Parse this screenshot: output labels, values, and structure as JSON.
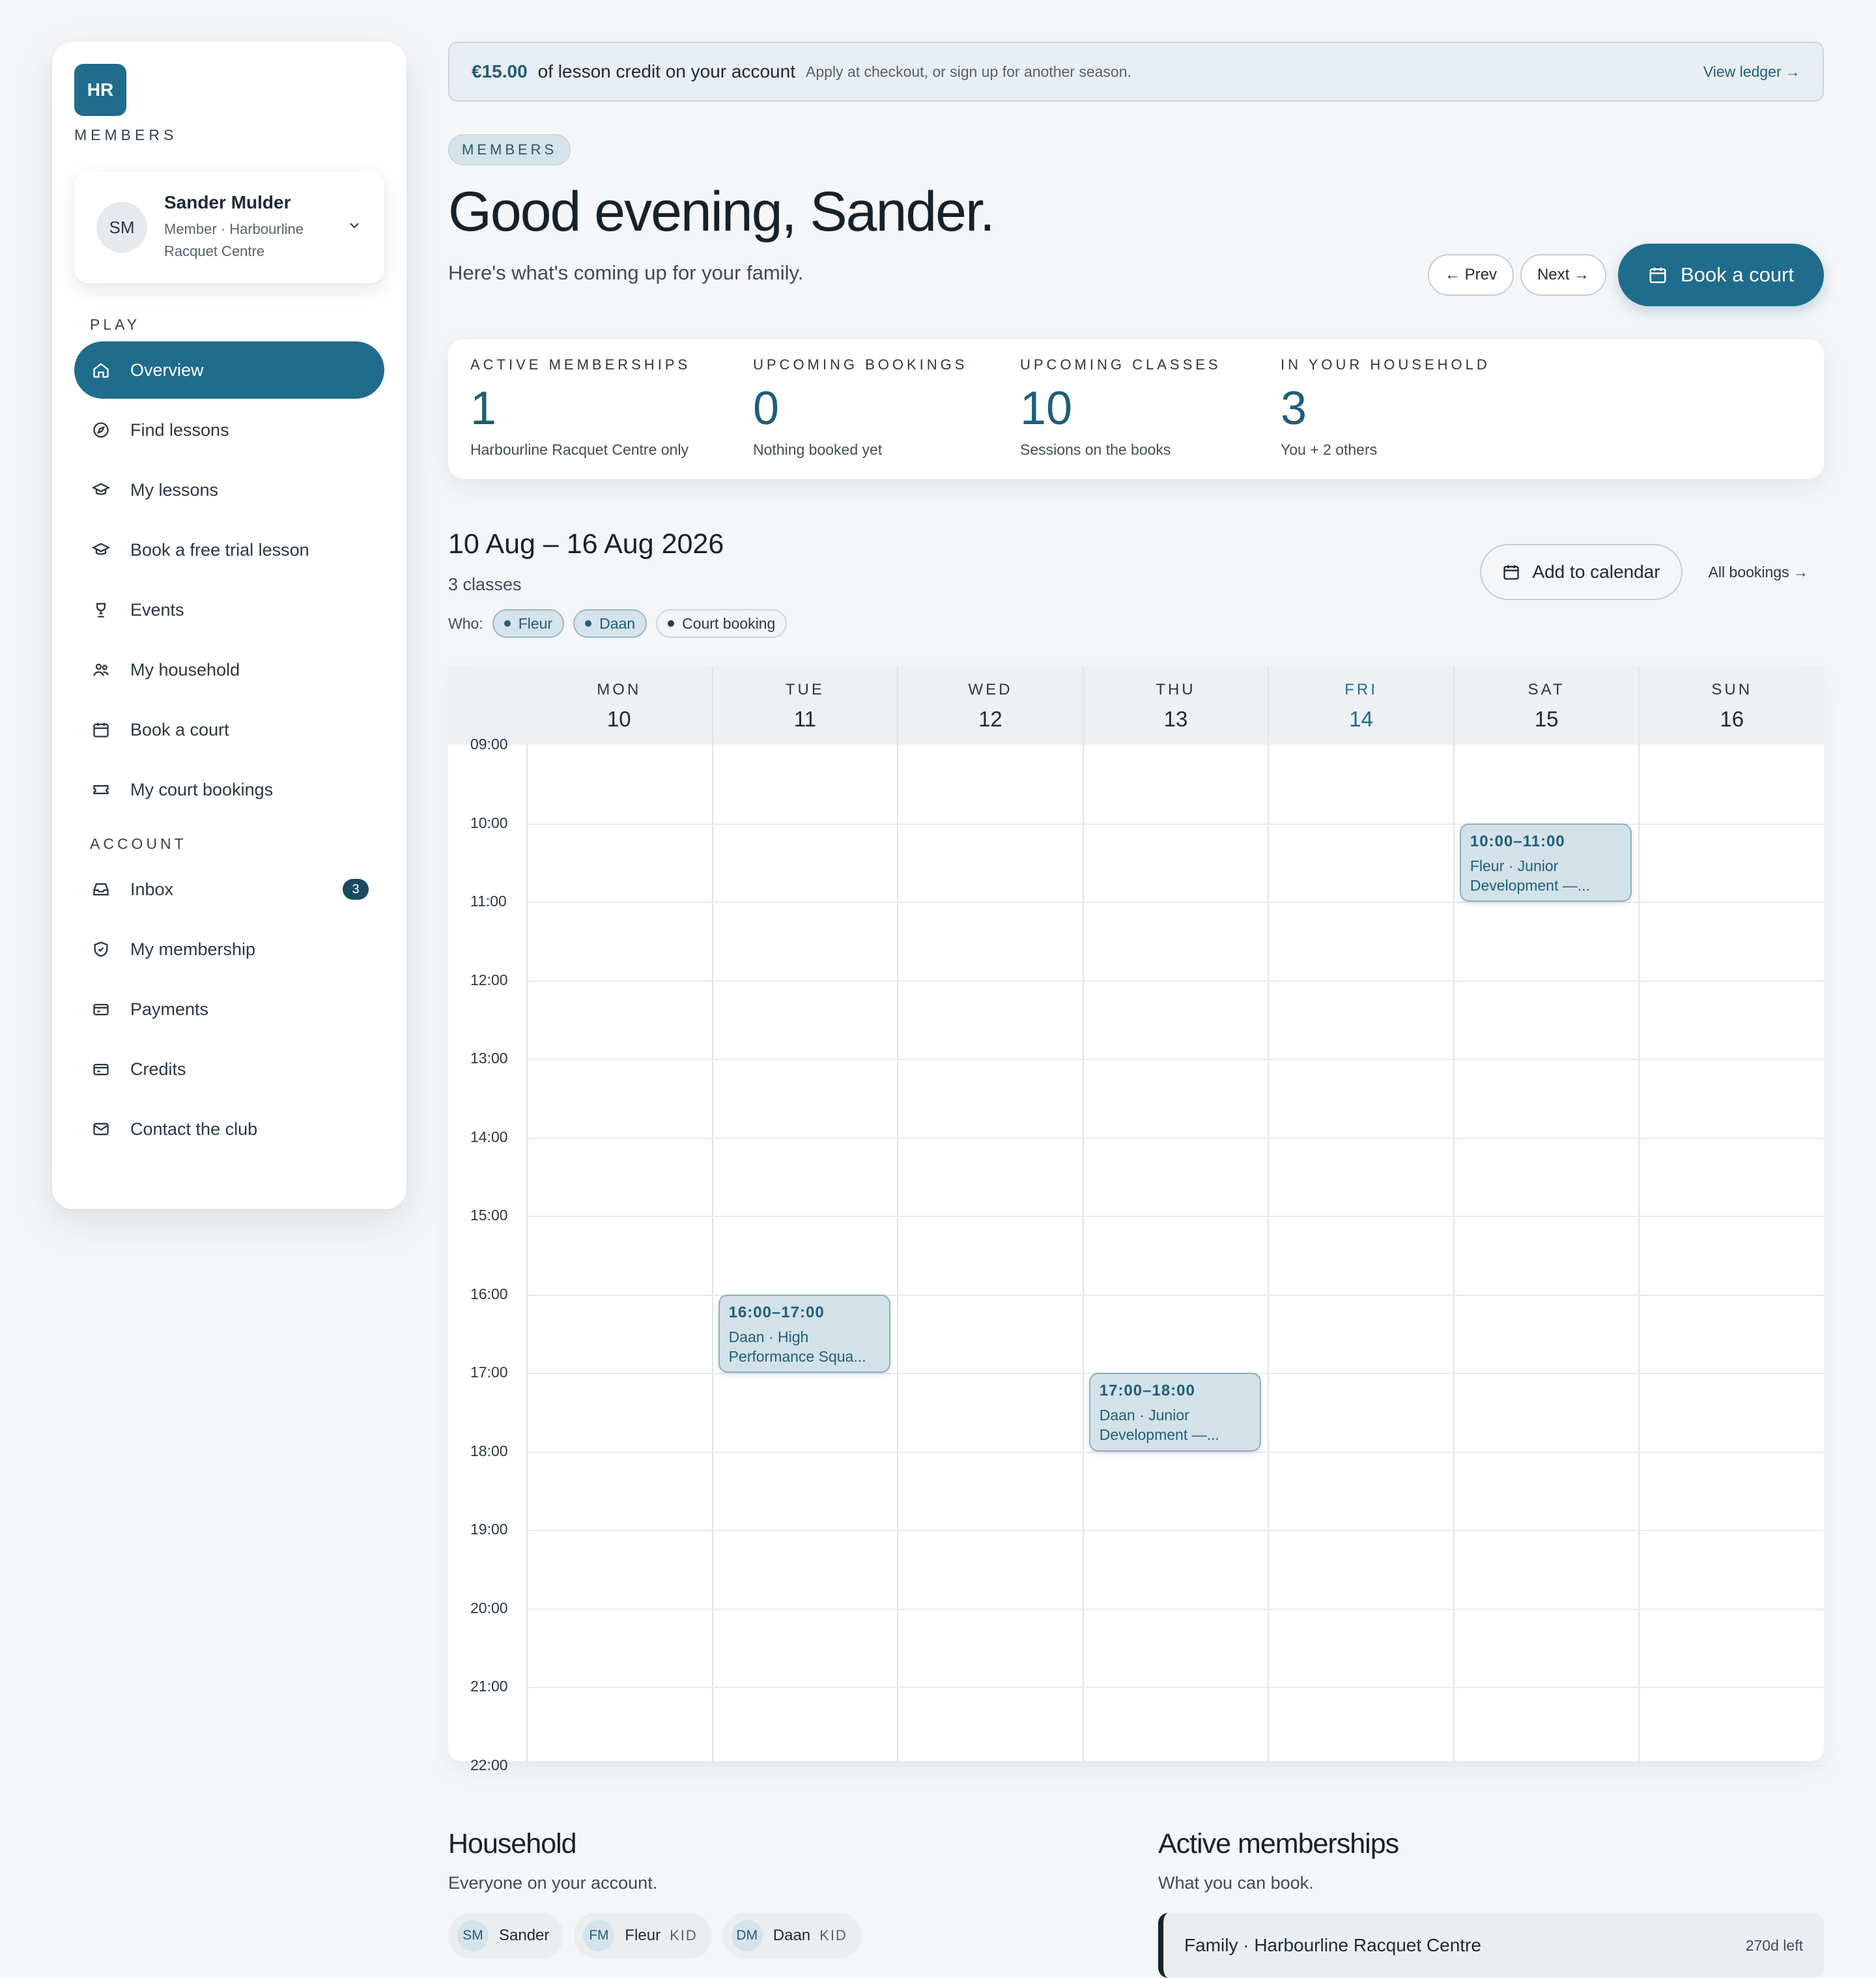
{
  "brand": {
    "logo_text": "HR",
    "caption": "MEMBERS"
  },
  "user": {
    "initials": "SM",
    "name": "Sander Mulder",
    "subtitle": "Member · Harbourline Racquet Centre"
  },
  "nav": {
    "play_label": "PLAY",
    "play_items": [
      {
        "label": "Overview",
        "icon": "home-icon",
        "active": true
      },
      {
        "label": "Find lessons",
        "icon": "compass-icon"
      },
      {
        "label": "My lessons",
        "icon": "graduation-cap-icon"
      },
      {
        "label": "Book a free trial lesson",
        "icon": "graduation-cap-icon"
      },
      {
        "label": "Events",
        "icon": "trophy-icon"
      },
      {
        "label": "My household",
        "icon": "users-icon"
      },
      {
        "label": "Book a court",
        "icon": "calendar-icon"
      },
      {
        "label": "My court bookings",
        "icon": "ticket-icon"
      }
    ],
    "account_label": "ACCOUNT",
    "account_items": [
      {
        "label": "Inbox",
        "icon": "inbox-icon",
        "badge": "3"
      },
      {
        "label": "My membership",
        "icon": "shield-icon"
      },
      {
        "label": "Payments",
        "icon": "card-icon"
      },
      {
        "label": "Credits",
        "icon": "card-icon"
      },
      {
        "label": "Contact the club",
        "icon": "mail-icon"
      }
    ]
  },
  "credit_banner": {
    "amount": "€15.00",
    "text": "of lesson credit on your account",
    "note": "Apply at checkout, or sign up for another season.",
    "link": "View ledger →"
  },
  "header": {
    "pill": "MEMBERS",
    "greeting": "Good evening, Sander.",
    "subtitle": "Here's what's coming up for your family.",
    "prev_label": "← Prev",
    "next_label": "Next →",
    "book_label": "Book a court"
  },
  "stats": [
    {
      "label": "ACTIVE MEMBERSHIPS",
      "value": "1",
      "sub": "Harbourline Racquet Centre only"
    },
    {
      "label": "UPCOMING BOOKINGS",
      "value": "0",
      "sub": "Nothing booked yet"
    },
    {
      "label": "UPCOMING CLASSES",
      "value": "10",
      "sub": "Sessions on the books"
    },
    {
      "label": "IN YOUR HOUSEHOLD",
      "value": "3",
      "sub": "You + 2 others"
    }
  ],
  "week": {
    "title": "10 Aug – 16 Aug 2026",
    "sub": "3 classes",
    "who_label": "Who:",
    "filters": [
      "Fleur",
      "Daan",
      "Court booking"
    ],
    "add_calendar_label": "Add to calendar",
    "all_bookings_label": "All bookings →"
  },
  "calendar": {
    "days": [
      {
        "dow": "MON",
        "num": "10"
      },
      {
        "dow": "TUE",
        "num": "11"
      },
      {
        "dow": "WED",
        "num": "12"
      },
      {
        "dow": "THU",
        "num": "13"
      },
      {
        "dow": "FRI",
        "num": "14",
        "today": true
      },
      {
        "dow": "SAT",
        "num": "15"
      },
      {
        "dow": "SUN",
        "num": "16"
      }
    ],
    "times": [
      "09:00",
      "10:00",
      "11:00",
      "12:00",
      "13:00",
      "14:00",
      "15:00",
      "16:00",
      "17:00",
      "18:00",
      "19:00",
      "20:00",
      "21:00",
      "22:00"
    ],
    "events": [
      {
        "day": 1,
        "start": 16,
        "end": 17,
        "time": "16:00–17:00",
        "title": "Daan · High Performance Squa..."
      },
      {
        "day": 3,
        "start": 17,
        "end": 18,
        "time": "17:00–18:00",
        "title": "Daan · Junior Development —..."
      },
      {
        "day": 5,
        "start": 10,
        "end": 11,
        "time": "10:00–11:00",
        "title": "Fleur · Junior Development —..."
      }
    ]
  },
  "household": {
    "title": "Household",
    "sub": "Everyone on your account.",
    "members": [
      {
        "initials": "SM",
        "name": "Sander",
        "tag": ""
      },
      {
        "initials": "FM",
        "name": "Fleur",
        "tag": "KID"
      },
      {
        "initials": "DM",
        "name": "Daan",
        "tag": "KID"
      }
    ]
  },
  "memberships": {
    "title": "Active memberships",
    "sub": "What you can book.",
    "items": [
      {
        "name": "Family · Harbourline Racquet Centre",
        "left": "270d left"
      }
    ]
  },
  "colors": {
    "accent": "#1f6c8c",
    "accent_dark": "#1b4a60",
    "event_bg": "#d3e1e8"
  }
}
